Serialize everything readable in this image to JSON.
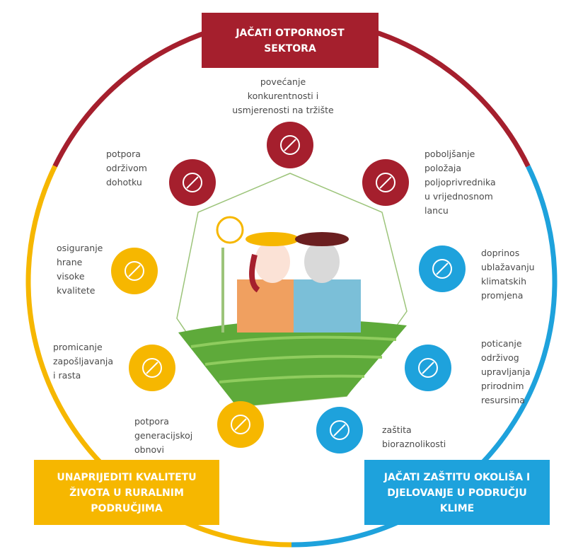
{
  "headers": {
    "top": {
      "lines": [
        "JAČATI OTPORNOST",
        "SEKTORA"
      ],
      "color": "#a51f2d"
    },
    "left": {
      "lines": [
        "UNAPRIJEDITI KVALITETU",
        "ŽIVOTA U RURALNIM",
        "PODRUČJIMA"
      ],
      "color": "#f6b700"
    },
    "right": {
      "lines": [
        "JAČATI ZAŠTITU OKOLIŠA I",
        "DJELOVANJE U PODRUČJU",
        "KLIME"
      ],
      "color": "#1ea2dc"
    }
  },
  "objectives": [
    {
      "label": [
        "povećanje",
        "konkurentnosti i",
        "usmjerenosti na tržište"
      ],
      "color": "#a51f2d"
    },
    {
      "label": [
        "potpora",
        "održivom",
        "dohotku"
      ],
      "color": "#a51f2d"
    },
    {
      "label": [
        "poboljšanje",
        "položaja",
        "poljoprivrednika",
        "u vrijednosnom",
        "lancu"
      ],
      "color": "#a51f2d"
    },
    {
      "label": [
        "osiguranje",
        "hrane",
        "visoke",
        "kvalitete"
      ],
      "color": "#f6b700"
    },
    {
      "label": [
        "doprinos",
        "ublažavanju",
        "klimatskih",
        "promjena"
      ],
      "color": "#1ea2dc"
    },
    {
      "label": [
        "promicanje",
        "zapošljavanja",
        "i rasta"
      ],
      "color": "#f6b700"
    },
    {
      "label": [
        "poticanje",
        "održivog",
        "upravljanja",
        "prirodnim",
        "resursima"
      ],
      "color": "#1ea2dc"
    },
    {
      "label": [
        "potpora",
        "generacijskoj",
        "obnovi"
      ],
      "color": "#f6b700"
    },
    {
      "label": [
        "zaštita",
        "bioraznolikosti"
      ],
      "color": "#1ea2dc"
    }
  ]
}
